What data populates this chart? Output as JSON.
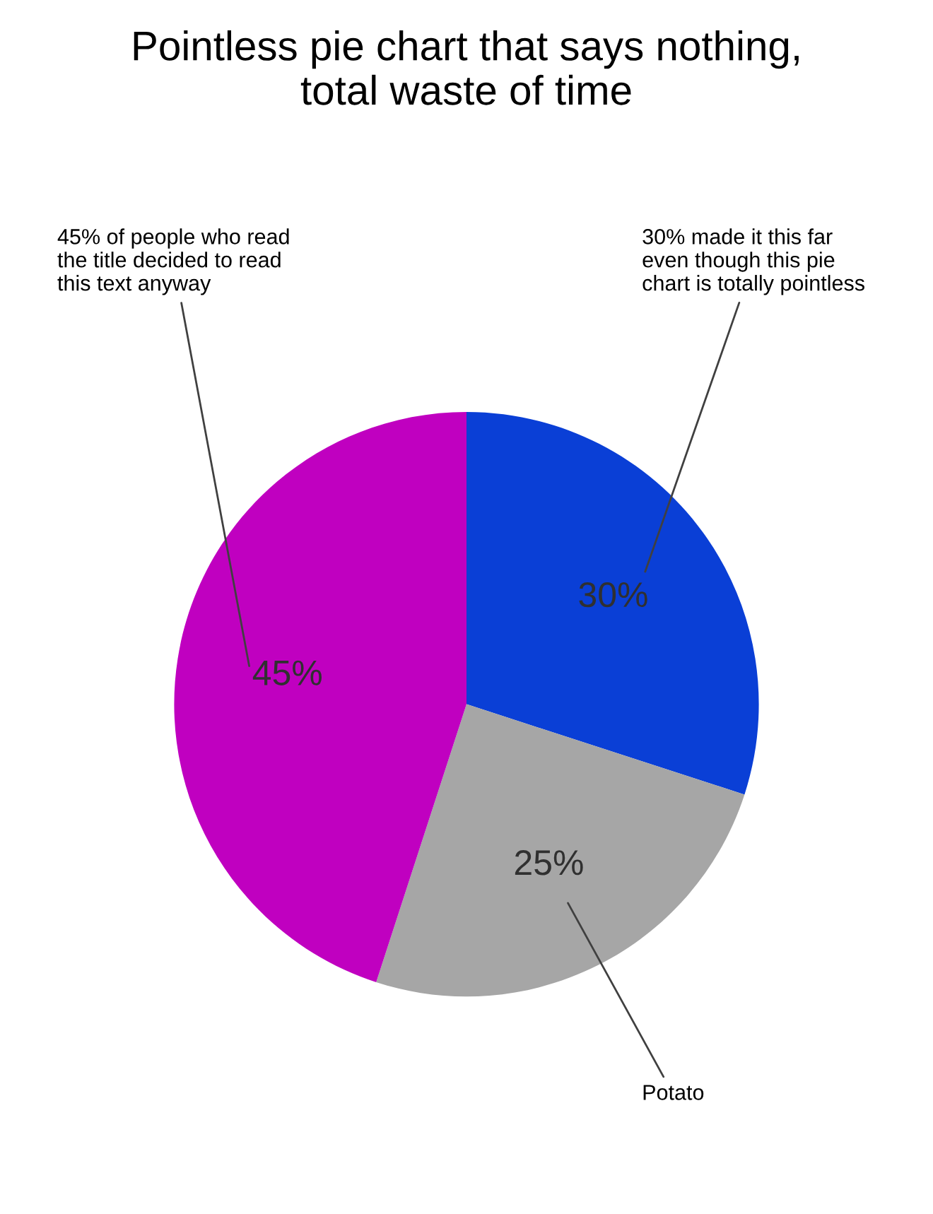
{
  "chart_data": {
    "type": "pie",
    "title": "Pointless pie chart that says nothing,\ntotal waste of time",
    "categories": [
      "30% made it this far\neven though this pie\nchart is totally pointless",
      "Potato",
      "45% of people who read\nthe title decided to read\nthis text anyway"
    ],
    "values": [
      30,
      25,
      45
    ],
    "colors": [
      "#0a3fd6",
      "#a6a6a6",
      "#c000c0"
    ],
    "value_labels": [
      "30%",
      "25%",
      "45%"
    ]
  }
}
